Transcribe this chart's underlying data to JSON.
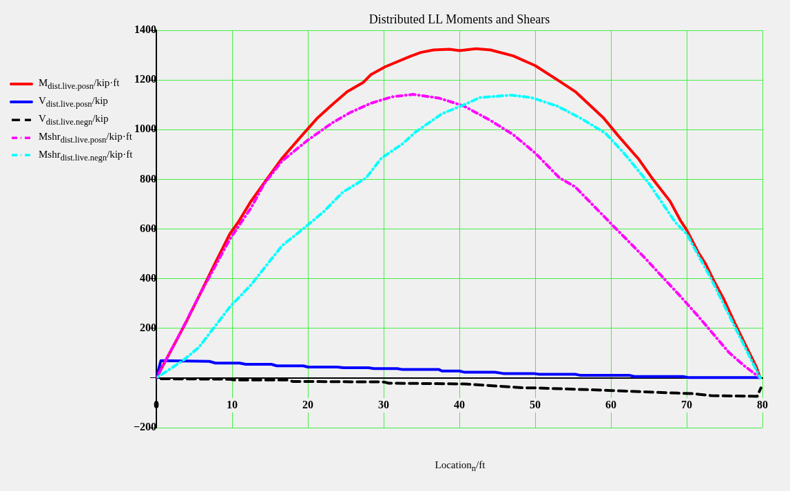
{
  "chart_data": {
    "type": "line",
    "title": "Distributed LL Moments and Shears",
    "xlabel": "Location$_{n}$/ft",
    "xlim": [
      0,
      80
    ],
    "xticks": [
      0,
      10,
      20,
      30,
      40,
      50,
      60,
      70,
      80
    ],
    "ylim": [
      -200,
      1400
    ],
    "yticks": [
      {
        "value": -200,
        "label": "−200"
      },
      {
        "value": 0,
        "label": null
      },
      200,
      400,
      600,
      800,
      1000,
      1200,
      1400
    ],
    "grid": true,
    "legend": "left",
    "marker": "none",
    "series": [
      {
        "name": "M$_{dist.live.pos}$$_{n}$/kip·ft",
        "color": "#ff0000",
        "line_style": "solid",
        "x": [
          0,
          2.8,
          3.9,
          5.6,
          7.7,
          9.7,
          10.8,
          12.5,
          14.6,
          16.6,
          19,
          21.3,
          23,
          25.2,
          27.3,
          28.3,
          30.2,
          33.5,
          34.9,
          36.6,
          38.7,
          40,
          42.2,
          44.1,
          47.1,
          50,
          53.2,
          55.3,
          59,
          61,
          63.7,
          65.4,
          67.8,
          69.2,
          70,
          71.5,
          72.5,
          73.6,
          74.9,
          76.4,
          78,
          79.2,
          79.7
        ],
        "values": [
          0,
          160,
          223,
          328,
          459,
          580,
          627,
          712,
          801,
          885,
          969,
          1048,
          1095,
          1153,
          1190,
          1221,
          1253,
          1295,
          1311,
          1321,
          1324,
          1318,
          1326,
          1321,
          1297,
          1258,
          1195,
          1153,
          1048,
          974,
          880,
          806,
          712,
          633,
          596,
          507,
          459,
          391,
          317,
          218,
          118,
          44,
          0
        ]
      },
      {
        "name": "V$_{dist.live.pos}$$_{n}$/kip",
        "color": "#0000ff",
        "line_style": "solid",
        "x": [
          0,
          0.6,
          7,
          7.8,
          11,
          11.8,
          15.2,
          15.9,
          19.4,
          20,
          23.9,
          24.7,
          28,
          28.7,
          31.8,
          32.5,
          37.3,
          37.7,
          40,
          40.7,
          44.7,
          45.8,
          49.8,
          50.5,
          55.3,
          55.9,
          62.4,
          63.1,
          69.5,
          70.2,
          79.7
        ],
        "values": [
          0,
          70,
          67,
          60,
          60,
          55,
          55,
          49,
          49,
          44,
          44,
          41,
          41,
          38,
          38,
          34,
          34,
          28,
          28,
          23,
          23,
          18,
          18,
          15,
          15,
          11,
          11,
          6,
          6,
          2,
          2
        ]
      },
      {
        "name": "V$_{dist.live.neg}$$_{n}$/kip",
        "color": "#000000",
        "line_style": "dashed",
        "x": [
          0,
          9.7,
          10.4,
          17.3,
          18,
          30,
          30.7,
          40.6,
          48.8,
          50,
          59.7,
          68.8,
          70.8,
          73.2,
          79.3,
          79.8
        ],
        "values": [
          -3,
          -5,
          -8,
          -8,
          -14,
          -16,
          -21,
          -24,
          -40,
          -40,
          -50,
          -61,
          -63,
          -71,
          -74,
          -40
        ]
      },
      {
        "name": "Mshr$_{dist.live.pos}$$_{n}$/kip·ft",
        "color": "#ff00ff",
        "line_style": "dashdot",
        "x": [
          0,
          2.8,
          5.6,
          9.7,
          12.5,
          14.2,
          16.6,
          20,
          23.2,
          25.6,
          28.3,
          31.1,
          33.9,
          37.3,
          39,
          40.6,
          44.1,
          47.1,
          50,
          53.2,
          55.3,
          60,
          64.4,
          69.2,
          71.5,
          75.6,
          77.6,
          79.7
        ],
        "values": [
          0,
          160,
          328,
          559,
          685,
          780,
          874,
          958,
          1027,
          1069,
          1106,
          1132,
          1142,
          1127,
          1111,
          1095,
          1037,
          980,
          906,
          806,
          769,
          622,
          486,
          328,
          249,
          102,
          49,
          0
        ]
      },
      {
        "name": "Mshr$_{dist.live.neg}$$_{n}$/kip·ft",
        "color": "#00ffff",
        "line_style": "dashdot",
        "x": [
          0,
          3.5,
          5.6,
          9.7,
          12.5,
          16.6,
          19.4,
          22.1,
          24.6,
          27.7,
          29.7,
          32.5,
          34.2,
          37.7,
          40.6,
          42.7,
          46.8,
          49.5,
          52.9,
          55.9,
          59.3,
          61.7,
          65.1,
          68.5,
          70,
          73.2,
          76.6,
          79.7
        ],
        "values": [
          0,
          70,
          123,
          286,
          375,
          533,
          601,
          670,
          748,
          806,
          885,
          943,
          990,
          1064,
          1100,
          1129,
          1139,
          1129,
          1095,
          1048,
          985,
          906,
          780,
          627,
          580,
          401,
          191,
          0
        ]
      }
    ]
  }
}
